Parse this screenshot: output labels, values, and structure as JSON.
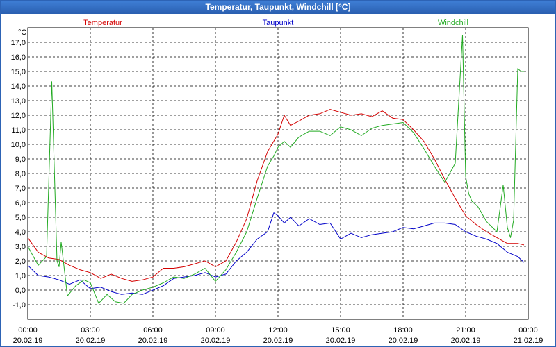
{
  "window": {
    "title": "Temperatur, Taupunkt, Windchill [°C]"
  },
  "chart_data": {
    "type": "line",
    "title": "Temperatur, Taupunkt, Windchill [°C]",
    "ylabel": "°C",
    "ylim": [
      -2,
      18
    ],
    "xlim": [
      0,
      24
    ],
    "grid": true,
    "y_ticks": [
      "-1,0",
      "0,0",
      "1,0",
      "2,0",
      "3,0",
      "4,0",
      "5,0",
      "6,0",
      "7,0",
      "8,0",
      "9,0",
      "10,0",
      "11,0",
      "12,0",
      "13,0",
      "14,0",
      "15,0",
      "16,0",
      "17,0"
    ],
    "x_ticks": [
      {
        "time": "00:00",
        "date": "20.02.19"
      },
      {
        "time": "03:00",
        "date": "20.02.19"
      },
      {
        "time": "06:00",
        "date": "20.02.19"
      },
      {
        "time": "09:00",
        "date": "20.02.19"
      },
      {
        "time": "12:00",
        "date": "20.02.19"
      },
      {
        "time": "15:00",
        "date": "20.02.19"
      },
      {
        "time": "18:00",
        "date": "20.02.19"
      },
      {
        "time": "21:00",
        "date": "20.02.19"
      },
      {
        "time": "00:00",
        "date": "21.02.19"
      }
    ],
    "series": [
      {
        "name": "Temperatur",
        "color": "#d40000",
        "x": [
          0,
          0.5,
          1,
          1.5,
          2,
          2.5,
          3,
          3.5,
          4,
          4.5,
          5,
          5.5,
          6,
          6.5,
          7,
          7.5,
          8,
          8.5,
          9,
          9.5,
          10,
          10.5,
          11,
          11.5,
          12,
          12.3,
          12.6,
          13,
          13.5,
          14,
          14.5,
          15,
          15.5,
          16,
          16.5,
          17,
          17.5,
          18,
          18.5,
          19,
          19.5,
          20,
          20.5,
          21,
          21.5,
          22,
          22.5,
          23,
          23.5,
          23.8
        ],
        "values": [
          3.6,
          2.6,
          2.2,
          2.1,
          1.7,
          1.4,
          1.2,
          0.8,
          1.1,
          0.8,
          0.6,
          0.7,
          0.9,
          1.5,
          1.5,
          1.6,
          1.8,
          2.0,
          1.6,
          2.0,
          3.3,
          4.9,
          7.5,
          9.5,
          10.7,
          12.0,
          11.3,
          11.6,
          12.0,
          12.1,
          12.4,
          12.2,
          12.0,
          12.1,
          11.9,
          12.3,
          11.8,
          11.7,
          11.0,
          10.2,
          9.0,
          7.6,
          6.3,
          5.1,
          4.5,
          4.0,
          3.6,
          3.2,
          3.2,
          3.1
        ]
      },
      {
        "name": "Taupunkt",
        "color": "#0000c8",
        "x": [
          0,
          0.5,
          1,
          1.5,
          2,
          2.5,
          3,
          3.5,
          4,
          4.5,
          5,
          5.5,
          6,
          6.5,
          7,
          7.5,
          8,
          8.5,
          9,
          9.5,
          10,
          10.5,
          11,
          11.5,
          11.8,
          12,
          12.3,
          12.6,
          13,
          13.5,
          14,
          14.5,
          15,
          15.5,
          16,
          16.5,
          17,
          17.5,
          18,
          18.5,
          19,
          19.5,
          20,
          20.5,
          21,
          21.5,
          22,
          22.5,
          23,
          23.5,
          23.8
        ],
        "values": [
          1.7,
          1.0,
          0.9,
          0.7,
          0.4,
          0.7,
          0.1,
          0.2,
          -0.1,
          -0.3,
          -0.2,
          -0.3,
          0.0,
          0.3,
          0.8,
          0.9,
          1.0,
          1.2,
          0.9,
          1.1,
          2.0,
          2.6,
          3.5,
          4.0,
          5.3,
          5.1,
          4.6,
          5.0,
          4.4,
          4.9,
          4.5,
          4.6,
          3.5,
          3.9,
          3.6,
          3.8,
          3.9,
          4.0,
          4.3,
          4.2,
          4.4,
          4.6,
          4.6,
          4.5,
          4.0,
          3.7,
          3.5,
          3.2,
          2.6,
          2.3,
          1.9
        ]
      },
      {
        "name": "Windchill",
        "color": "#22aa22",
        "x": [
          0,
          0.5,
          0.9,
          1.15,
          1.4,
          1.5,
          1.6,
          1.9,
          2.3,
          2.7,
          3.0,
          3.4,
          3.8,
          4.2,
          4.6,
          5.0,
          5.5,
          6.0,
          6.5,
          7.0,
          7.5,
          8.0,
          8.5,
          9.0,
          9.5,
          10.0,
          10.5,
          11.0,
          11.5,
          11.8,
          12.0,
          12.3,
          12.6,
          13.0,
          13.5,
          14.0,
          14.5,
          15.0,
          15.5,
          16.0,
          16.5,
          17.0,
          17.5,
          18.0,
          18.5,
          19.0,
          19.5,
          20.0,
          20.5,
          20.85,
          21.0,
          21.15,
          21.3,
          21.6,
          22.0,
          22.5,
          22.8,
          23.0,
          23.15,
          23.3,
          23.5,
          23.65,
          23.8
        ],
        "values": [
          3.0,
          1.7,
          2.3,
          14.3,
          2.0,
          1.6,
          3.3,
          -0.4,
          0.3,
          0.7,
          0.5,
          -0.9,
          -0.3,
          -0.8,
          -0.9,
          -0.3,
          0.0,
          0.2,
          0.5,
          0.9,
          0.8,
          1.1,
          1.5,
          0.6,
          1.4,
          2.6,
          4.0,
          6.3,
          8.5,
          9.2,
          9.8,
          10.2,
          9.8,
          10.5,
          10.9,
          10.9,
          10.6,
          11.2,
          11.0,
          10.6,
          11.1,
          11.3,
          11.4,
          11.5,
          10.8,
          9.7,
          8.5,
          7.4,
          8.7,
          17.5,
          7.8,
          6.6,
          6.1,
          5.7,
          4.7,
          4.0,
          7.2,
          4.3,
          3.6,
          4.8,
          15.2,
          15.0,
          15.0
        ]
      }
    ]
  }
}
